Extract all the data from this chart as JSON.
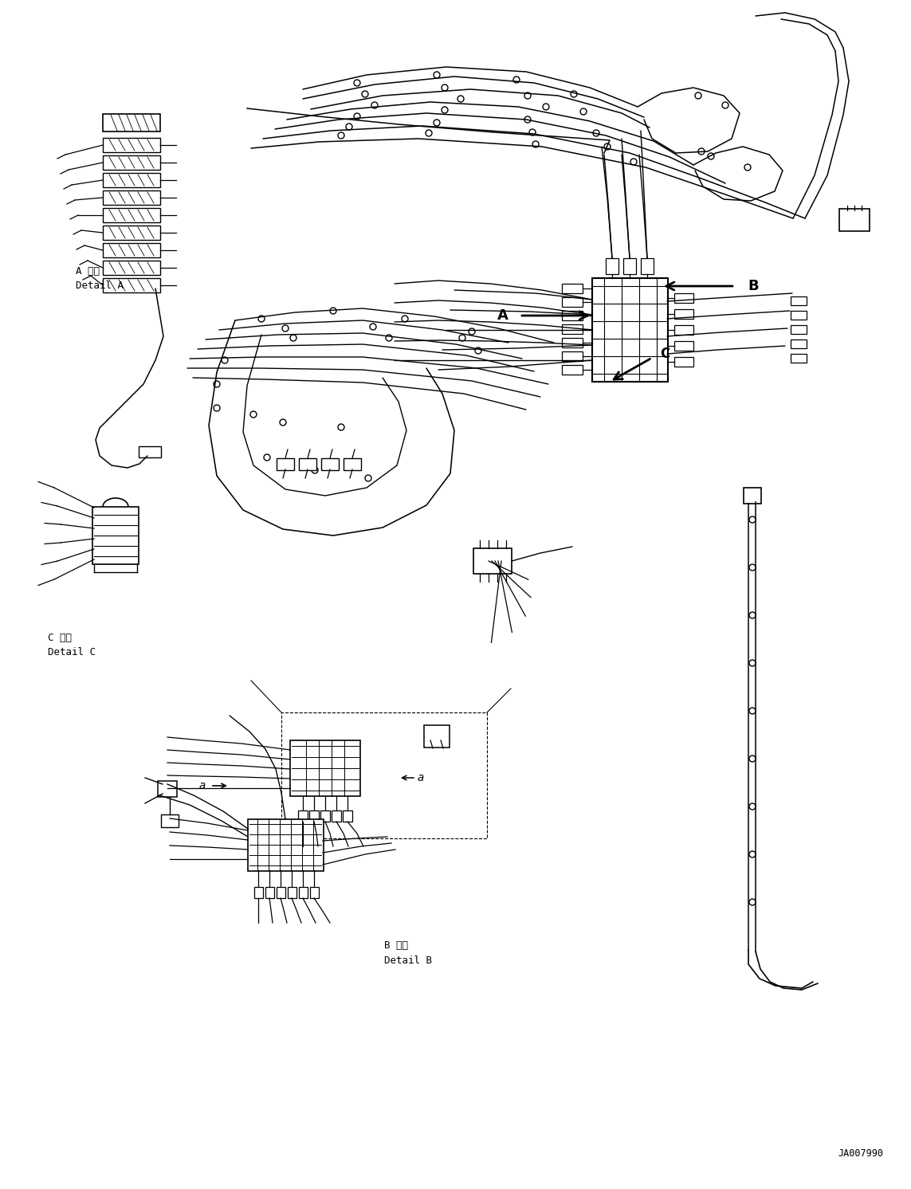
{
  "bg_color": "#ffffff",
  "fig_width": 11.43,
  "fig_height": 14.92,
  "dpi": 100,
  "labels": {
    "detail_a_jp": "A 詳細",
    "detail_a_en": "Detail A",
    "detail_b_jp": "B 詳細",
    "detail_b_en": "Detail B",
    "detail_c_jp": "C 詳細",
    "detail_c_en": "Detail C",
    "part_number": "JA007990",
    "label_A": "A",
    "label_B": "B",
    "label_C": "C",
    "label_a": "a"
  },
  "line_color": "#000000"
}
